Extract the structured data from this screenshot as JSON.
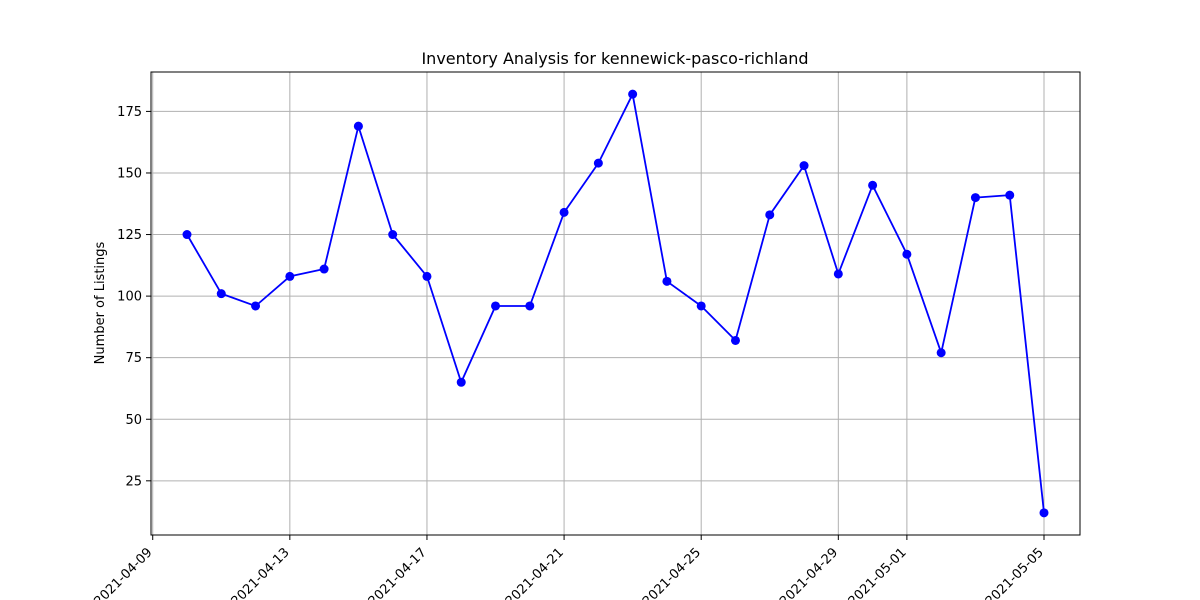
{
  "chart_data": {
    "type": "line",
    "title": "Inventory Analysis for kennewick-pasco-richland",
    "xlabel": "",
    "ylabel": "Number of Listings",
    "grid": true,
    "marker": "circle",
    "line_color": "#0000ff",
    "x_range": [
      "2021-04-09",
      "2021-05-06"
    ],
    "ylim": [
      3,
      191
    ],
    "x_ticks": [
      "2021-04-09",
      "2021-04-13",
      "2021-04-17",
      "2021-04-21",
      "2021-04-25",
      "2021-04-29",
      "2021-05-01",
      "2021-05-05"
    ],
    "y_ticks": [
      25,
      50,
      75,
      100,
      125,
      150,
      175
    ],
    "points": [
      {
        "x": "2021-04-10",
        "y": 125
      },
      {
        "x": "2021-04-11",
        "y": 101
      },
      {
        "x": "2021-04-12",
        "y": 96
      },
      {
        "x": "2021-04-13",
        "y": 108
      },
      {
        "x": "2021-04-14",
        "y": 111
      },
      {
        "x": "2021-04-15",
        "y": 169
      },
      {
        "x": "2021-04-16",
        "y": 125
      },
      {
        "x": "2021-04-17",
        "y": 108
      },
      {
        "x": "2021-04-18",
        "y": 65
      },
      {
        "x": "2021-04-19",
        "y": 96
      },
      {
        "x": "2021-04-20",
        "y": 96
      },
      {
        "x": "2021-04-21",
        "y": 134
      },
      {
        "x": "2021-04-22",
        "y": 154
      },
      {
        "x": "2021-04-23",
        "y": 182
      },
      {
        "x": "2021-04-24",
        "y": 106
      },
      {
        "x": "2021-04-25",
        "y": 96
      },
      {
        "x": "2021-04-26",
        "y": 82
      },
      {
        "x": "2021-04-27",
        "y": 133
      },
      {
        "x": "2021-04-28",
        "y": 153
      },
      {
        "x": "2021-04-29",
        "y": 109
      },
      {
        "x": "2021-04-30",
        "y": 145
      },
      {
        "x": "2021-05-01",
        "y": 117
      },
      {
        "x": "2021-05-02",
        "y": 77
      },
      {
        "x": "2021-05-03",
        "y": 140
      },
      {
        "x": "2021-05-04",
        "y": 141
      },
      {
        "x": "2021-05-05",
        "y": 12
      }
    ]
  }
}
